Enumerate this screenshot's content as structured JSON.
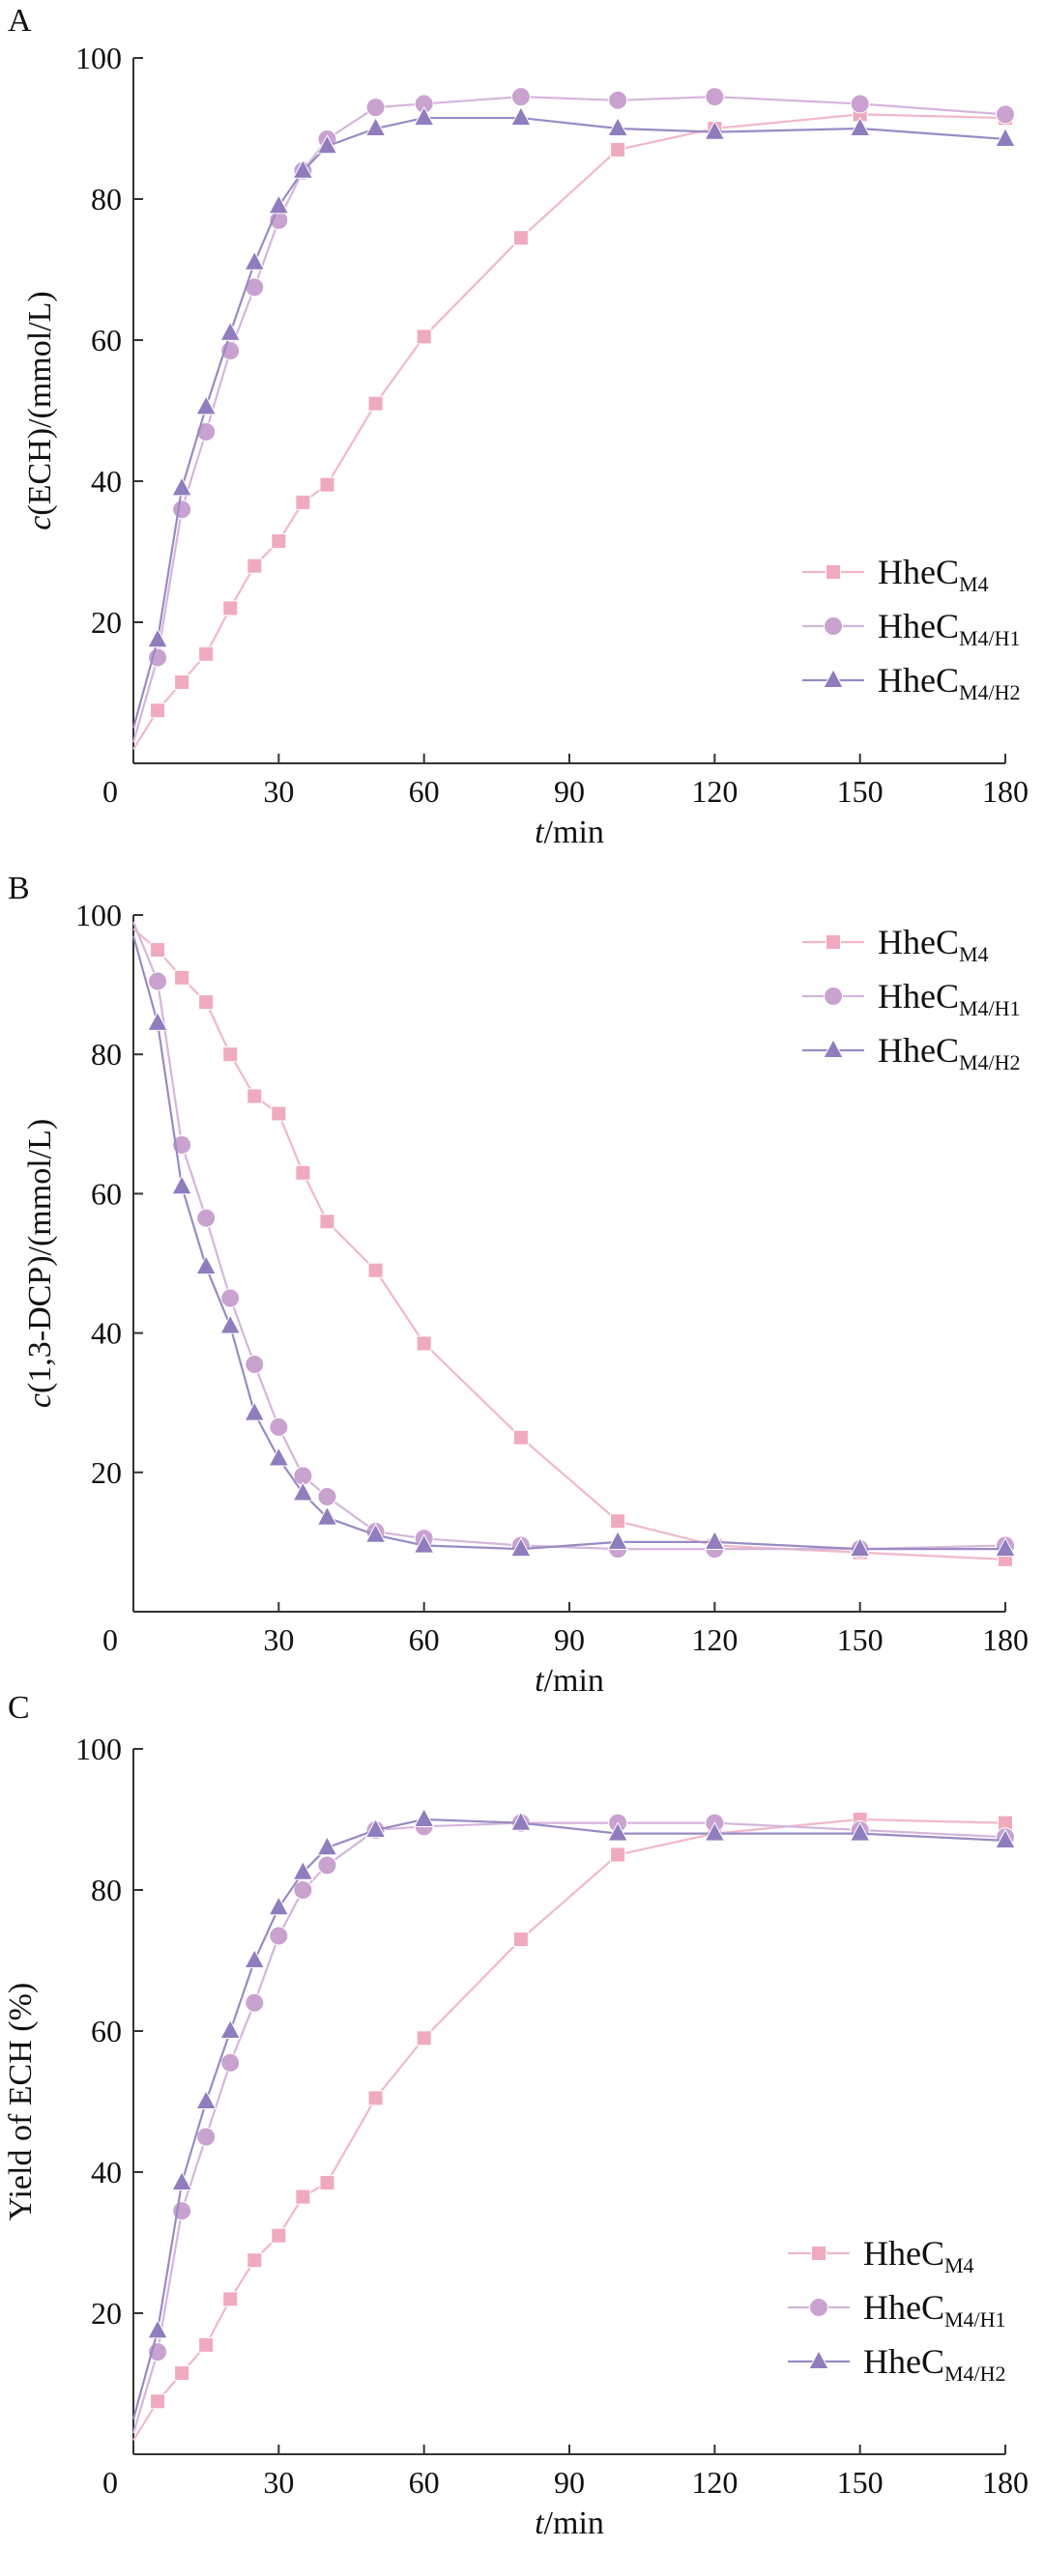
{
  "figure": {
    "panels": [
      "A",
      "B",
      "C"
    ]
  },
  "colors": {
    "HheC_M4": "#F0AABE",
    "HheC_M4/H1": "#C9A2D0",
    "HheC_M4/H2": "#8F7DBE",
    "HheC_M4_line": "#F2B8C8",
    "HheC_M4/H1_line": "#D4B6DA",
    "HheC_M4/H2_line": "#9A8AC4"
  },
  "chart_data": [
    {
      "panel": "A",
      "type": "line",
      "title": "",
      "xlabel_italic": "t",
      "xlabel_rest": "/min",
      "ylabel_italic": "c",
      "ylabel_rest": "(ECH)/(mmol/L)",
      "xlim": [
        0,
        180
      ],
      "ylim": [
        0,
        100
      ],
      "xticks": [
        0,
        30,
        60,
        90,
        120,
        150,
        180
      ],
      "yticks": [
        20,
        40,
        60,
        80,
        100
      ],
      "origin_label": "0",
      "legend_position": "bottom-right",
      "series": [
        {
          "key": "HheC_M4",
          "name": "HheC",
          "sub": "M4",
          "marker": "square",
          "x": [
            0,
            5,
            10,
            15,
            20,
            25,
            30,
            35,
            40,
            50,
            60,
            80,
            100,
            120,
            150,
            180
          ],
          "y": [
            2,
            7.5,
            11.5,
            15.5,
            22,
            28,
            31.5,
            37,
            39.5,
            51,
            60.5,
            74.5,
            87,
            90,
            92,
            91.5
          ]
        },
        {
          "key": "HheC_M4/H1",
          "name": "HheC",
          "sub": "M4/H1",
          "marker": "circle",
          "x": [
            0,
            5,
            10,
            15,
            20,
            25,
            30,
            35,
            40,
            50,
            60,
            80,
            100,
            120,
            150,
            180
          ],
          "y": [
            3,
            15,
            36,
            47,
            58.5,
            67.5,
            77,
            84,
            88.5,
            93,
            93.5,
            94.5,
            94,
            94.5,
            93.5,
            92
          ]
        },
        {
          "key": "HheC_M4/H2",
          "name": "HheC",
          "sub": "M4/H2",
          "marker": "triangle",
          "x": [
            0,
            5,
            10,
            15,
            20,
            25,
            30,
            35,
            40,
            50,
            60,
            80,
            100,
            120,
            150,
            180
          ],
          "y": [
            5,
            17.5,
            39,
            50.5,
            61,
            71,
            79,
            84,
            87.5,
            90,
            91.5,
            91.5,
            90,
            89.5,
            90,
            88.5
          ]
        }
      ]
    },
    {
      "panel": "B",
      "type": "line",
      "title": "",
      "xlabel_italic": "t",
      "xlabel_rest": "/min",
      "ylabel_italic": "c",
      "ylabel_rest": "(1,3-DCP)/(mmol/L)",
      "xlim": [
        0,
        180
      ],
      "ylim": [
        0,
        100
      ],
      "xticks": [
        0,
        30,
        60,
        90,
        120,
        150,
        180
      ],
      "yticks": [
        20,
        40,
        60,
        80,
        100
      ],
      "origin_label": "0",
      "legend_position": "top-right",
      "series": [
        {
          "key": "HheC_M4",
          "name": "HheC",
          "sub": "M4",
          "marker": "square",
          "x": [
            0,
            5,
            10,
            15,
            20,
            25,
            30,
            35,
            40,
            50,
            60,
            80,
            100,
            120,
            150,
            180
          ],
          "y": [
            98,
            95,
            91,
            87.5,
            80,
            74,
            71.5,
            63,
            56,
            49,
            38.5,
            25,
            13,
            9.5,
            8.5,
            7.5
          ]
        },
        {
          "key": "HheC_M4/H1",
          "name": "HheC",
          "sub": "M4/H1",
          "marker": "circle",
          "x": [
            0,
            5,
            10,
            15,
            20,
            25,
            30,
            35,
            40,
            50,
            60,
            80,
            100,
            120,
            150,
            180
          ],
          "y": [
            99,
            90.5,
            67,
            56.5,
            45,
            35.5,
            26.5,
            19.5,
            16.5,
            11.5,
            10.5,
            9.5,
            9,
            9,
            9,
            9.5
          ]
        },
        {
          "key": "HheC_M4/H2",
          "name": "HheC",
          "sub": "M4/H2",
          "marker": "triangle",
          "x": [
            0,
            5,
            10,
            15,
            20,
            25,
            30,
            35,
            40,
            50,
            60,
            80,
            100,
            120,
            150,
            180
          ],
          "y": [
            97,
            84.5,
            61,
            49.5,
            41,
            28.5,
            22,
            17,
            13.5,
            11,
            9.5,
            9,
            10,
            10,
            9,
            9
          ]
        }
      ]
    },
    {
      "panel": "C",
      "type": "line",
      "title": "",
      "xlabel_italic": "t",
      "xlabel_rest": "/min",
      "ylabel_italic": "",
      "ylabel_rest": "Yield of ECH (%)",
      "xlim": [
        0,
        180
      ],
      "ylim": [
        0,
        100
      ],
      "xticks": [
        0,
        30,
        60,
        90,
        120,
        150,
        180
      ],
      "yticks": [
        20,
        40,
        60,
        80,
        100
      ],
      "origin_label": "0",
      "legend_position": "bottom-right",
      "series": [
        {
          "key": "HheC_M4",
          "name": "HheC",
          "sub": "M4",
          "marker": "square",
          "x": [
            0,
            5,
            10,
            15,
            20,
            25,
            30,
            35,
            40,
            50,
            60,
            80,
            100,
            120,
            150,
            180
          ],
          "y": [
            2,
            7.5,
            11.5,
            15.5,
            22,
            27.5,
            31,
            36.5,
            38.5,
            50.5,
            59,
            73,
            85,
            88,
            90,
            89.5
          ]
        },
        {
          "key": "HheC_M4/H1",
          "name": "HheC",
          "sub": "M4/H1",
          "marker": "circle",
          "x": [
            0,
            5,
            10,
            15,
            20,
            25,
            30,
            35,
            40,
            50,
            60,
            80,
            100,
            120,
            150,
            180
          ],
          "y": [
            3,
            14.5,
            34.5,
            45,
            55.5,
            64,
            73.5,
            80,
            83.5,
            88.5,
            89,
            89.5,
            89.5,
            89.5,
            88.5,
            87.5
          ]
        },
        {
          "key": "HheC_M4/H2",
          "name": "HheC",
          "sub": "M4/H2",
          "marker": "triangle",
          "x": [
            0,
            5,
            10,
            15,
            20,
            25,
            30,
            35,
            40,
            50,
            60,
            80,
            100,
            120,
            150,
            180
          ],
          "y": [
            5,
            17.5,
            38.5,
            50,
            60,
            70,
            77.5,
            82.5,
            86,
            88.5,
            90,
            89.5,
            88,
            88,
            88,
            87
          ]
        }
      ]
    }
  ]
}
